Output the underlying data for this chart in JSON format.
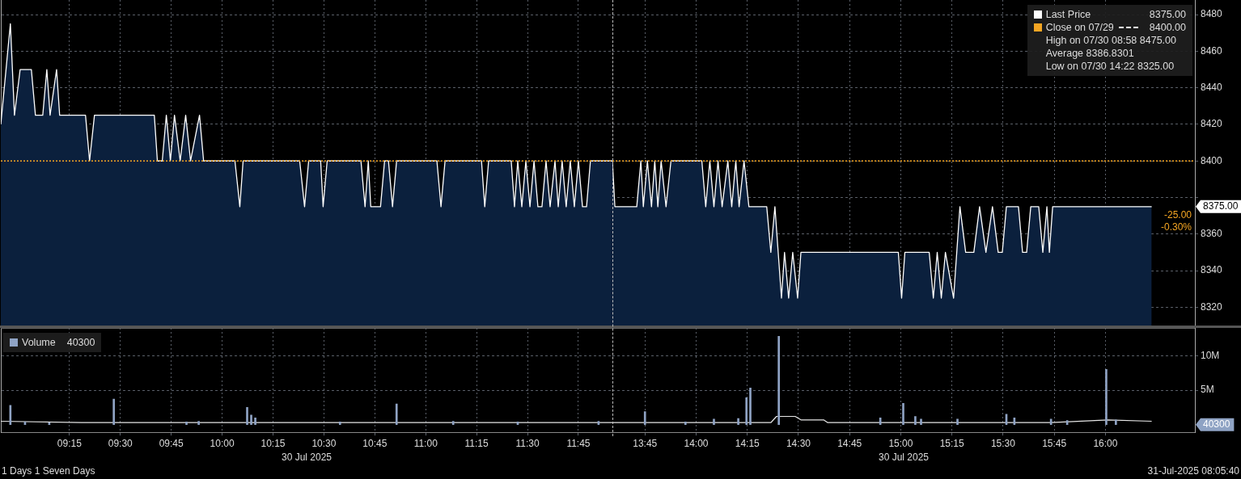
{
  "chart_data": [
    {
      "type": "area",
      "tick_labels": false,
      "grid": true,
      "xlim": [
        8.913,
        11.917
      ],
      "ylim": [
        8310,
        8488
      ],
      "xticks": [
        {
          "value": 9.25,
          "label": null
        },
        {
          "value": 9.5,
          "label": null
        },
        {
          "value": 9.75,
          "label": null
        },
        {
          "value": 10,
          "label": null
        },
        {
          "value": 10.25,
          "label": null
        },
        {
          "value": 10.5,
          "label": null
        },
        {
          "value": 10.75,
          "label": null
        },
        {
          "value": 11,
          "label": null
        },
        {
          "value": 11.25,
          "label": null
        },
        {
          "value": 11.5,
          "label": null
        },
        {
          "value": 11.75,
          "label": null
        }
      ],
      "yticks": [
        8320,
        8340,
        8360,
        8400,
        8420,
        8440,
        8460,
        8480
      ],
      "series": [
        {
          "color": "#ffffff",
          "x": [
            8.913,
            8.96,
            8.98,
            9.008,
            9.063,
            9.083,
            9.119,
            9.139,
            9.155,
            9.187,
            9.202,
            9.329,
            9.349,
            9.373,
            9.667,
            9.682,
            9.706,
            9.726,
            9.746,
            9.766,
            9.794,
            9.821,
            9.845,
            9.889,
            9.909,
            10.063,
            10.087,
            10.103,
            10.381,
            10.405,
            10.425,
            10.484,
            10.496,
            10.516,
            10.682,
            10.702,
            10.718,
            10.73,
            10.778,
            10.798,
            10.817,
            10.837,
            10.857,
            11.055,
            11.075,
            11.095,
            11.274,
            11.29,
            11.309,
            11.42,
            11.436,
            11.452,
            11.472,
            11.492,
            11.512,
            11.532,
            11.551,
            11.571,
            11.591,
            11.611,
            11.635,
            11.651,
            11.67,
            11.69,
            11.71,
            11.73,
            11.75,
            11.77,
            11.79,
            11.809,
            11.917
          ],
          "values": [
            8420,
            8475,
            8425,
            8450,
            8450,
            8425,
            8425,
            8450,
            8425,
            8450,
            8425,
            8425,
            8400,
            8425,
            8425,
            8400,
            8400,
            8425,
            8400,
            8425,
            8400,
            8425,
            8400,
            8425,
            8400,
            8400,
            8375,
            8400,
            8400,
            8375,
            8400,
            8400,
            8375,
            8400,
            8400,
            8375,
            8400,
            8375,
            8375,
            8400,
            8400,
            8375,
            8400,
            8400,
            8375,
            8400,
            8400,
            8375,
            8400,
            8400,
            8375,
            8400,
            8375,
            8400,
            8375,
            8400,
            8375,
            8375,
            8400,
            8375,
            8400,
            8375,
            8400,
            8375,
            8400,
            8375,
            8400,
            8375,
            8375,
            8400,
            8400
          ]
        }
      ],
      "ref_lines": [
        {
          "axis": "y",
          "value": 8400,
          "color": "#f5a623",
          "line_style": "dotted"
        }
      ]
    },
    {
      "type": "area",
      "tick_labels": "y",
      "grid": true,
      "legend": "top right",
      "xlim": [
        13.591,
        16.437
      ],
      "ylim": [
        8310,
        8488
      ],
      "xticks": [
        {
          "value": 13.75,
          "label": null
        },
        {
          "value": 14,
          "label": null
        },
        {
          "value": 14.25,
          "label": null
        },
        {
          "value": 14.5,
          "label": null
        },
        {
          "value": 14.75,
          "label": null
        },
        {
          "value": 15,
          "label": null
        },
        {
          "value": 15.25,
          "label": null
        },
        {
          "value": 15.5,
          "label": null
        },
        {
          "value": 15.75,
          "label": null
        },
        {
          "value": 16,
          "label": null
        }
      ],
      "yticks": [
        8320,
        8340,
        8360,
        {
          "value": 8380,
          "label": null
        },
        8400,
        8420,
        8440,
        8460,
        8480
      ],
      "series": [
        {
          "name": "Last Price",
          "color": "#ffffff",
          "x": [
            13.591,
            13.603,
            13.71,
            13.73,
            13.742,
            13.762,
            13.782,
            13.798,
            13.813,
            13.829,
            13.853,
            13.877,
            14.028,
            14.047,
            14.067,
            14.087,
            14.107,
            14.127,
            14.155,
            14.174,
            14.194,
            14.21,
            14.234,
            14.258,
            14.345,
            14.365,
            14.385,
            14.417,
            14.432,
            14.452,
            14.472,
            14.496,
            14.512,
            14.988,
            15.004,
            15.02,
            15.139,
            15.159,
            15.178,
            15.198,
            15.218,
            15.258,
            15.289,
            15.317,
            15.357,
            15.385,
            15.416,
            15.448,
            15.476,
            15.496,
            15.516,
            15.575,
            15.595,
            15.615,
            15.635,
            15.674,
            15.694,
            15.714,
            15.726,
            15.742,
            16.226
          ],
          "values": [
            8400,
            8375,
            8375,
            8400,
            8375,
            8400,
            8375,
            8400,
            8375,
            8400,
            8375,
            8400,
            8400,
            8375,
            8400,
            8375,
            8400,
            8375,
            8400,
            8375,
            8400,
            8375,
            8400,
            8375,
            8375,
            8350,
            8375,
            8325,
            8350,
            8325,
            8350,
            8325,
            8350,
            8350,
            8325,
            8350,
            8350,
            8325,
            8350,
            8325,
            8350,
            8325,
            8375,
            8350,
            8350,
            8375,
            8350,
            8375,
            8350,
            8350,
            8375,
            8375,
            8350,
            8350,
            8375,
            8375,
            8350,
            8375,
            8350,
            8375,
            8375
          ]
        }
      ],
      "ref_lines": [
        {
          "axis": "y",
          "value": 8400,
          "label": "Close on 07/29",
          "color": "#f5a623",
          "line_style": "dotted"
        }
      ],
      "annotations": [
        "8375.00",
        "8400.00",
        "High on 07/30 08:58 8475.00",
        "Average 8386.8301",
        "Low on 07/30 14:22 8325.00",
        "8375.00",
        "-25.00",
        "-0.30%"
      ]
    },
    {
      "type": "bar",
      "tick_labels": "x",
      "grid": true,
      "legend": "top left",
      "xlabel": "30 Jul 2025",
      "xlim": [
        8.913,
        11.917
      ],
      "ylim": [
        -1100000,
        14000000
      ],
      "xticks": [
        {
          "value": 9.25,
          "label": "09:15"
        },
        {
          "value": 9.5,
          "label": "09:30"
        },
        {
          "value": 9.75,
          "label": "09:45"
        },
        {
          "value": 10,
          "label": "10:00"
        },
        {
          "value": 10.25,
          "label": "10:15"
        },
        {
          "value": 10.5,
          "label": "10:30"
        },
        {
          "value": 10.75,
          "label": "10:45"
        },
        {
          "value": 11,
          "label": "11:00"
        },
        {
          "value": 11.25,
          "label": "11:15"
        },
        {
          "value": 11.5,
          "label": "11:30"
        },
        {
          "value": 11.75,
          "label": "11:45"
        }
      ],
      "yticks": [
        {
          "value": 5000000,
          "label": null
        },
        {
          "value": 10000000,
          "label": null
        }
      ],
      "series": [
        {
          "name": "Volume",
          "color": "#8fa3c4",
          "x": [
            8.96,
            9.032,
            9.151,
            9.468,
            9.825,
            9.885,
            10.123,
            10.143,
            10.163,
            10.579,
            10.857,
            11.135,
            11.452,
            11.849
          ],
          "values": [
            2800000,
            400000,
            300000,
            3700000,
            400000,
            500000,
            2500000,
            1400000,
            1000000,
            400000,
            3000000,
            500000,
            400000,
            500000
          ]
        },
        {
          "type": "line",
          "color": "#e6e6e6",
          "x": [
            8.913,
            9.309,
            11.917
          ],
          "values": [
            500000,
            300000,
            300000
          ]
        }
      ],
      "annotations": [
        "40300",
        "1 Days 1 Seven Days"
      ]
    },
    {
      "type": "bar",
      "grid": true,
      "xlabel": "30 Jul 2025",
      "xlim": [
        13.591,
        16.437
      ],
      "ylim": [
        -1100000,
        14000000
      ],
      "xticks": [
        {
          "value": 13.75,
          "label": "13:45"
        },
        {
          "value": 14,
          "label": "14:00"
        },
        {
          "value": 14.25,
          "label": "14:15"
        },
        {
          "value": 14.5,
          "label": "14:30"
        },
        {
          "value": 14.75,
          "label": "14:45"
        },
        {
          "value": 15,
          "label": "15:00"
        },
        {
          "value": 15.25,
          "label": "15:15"
        },
        {
          "value": 15.5,
          "label": "15:30"
        },
        {
          "value": 15.75,
          "label": "15:45"
        },
        {
          "value": 16,
          "label": "16:00"
        }
      ],
      "yticks": [
        {
          "value": 5000000,
          "label": "5M"
        },
        {
          "value": 10000000,
          "label": "10M"
        }
      ],
      "series": [
        {
          "color": "#8fa3c4",
          "x": [
            13.75,
            13.948,
            14.087,
            14.206,
            14.246,
            14.265,
            14.404,
            14.9,
            15.012,
            15.071,
            15.099,
            15.277,
            15.516,
            15.555,
            15.734,
            15.813,
            16.004,
            16.051
          ],
          "values": [
            1900000,
            400000,
            800000,
            900000,
            3900000,
            5300000,
            12800000,
            1000000,
            3100000,
            1200000,
            800000,
            800000,
            1500000,
            1000000,
            800000,
            600000,
            8000000,
            700000
          ]
        },
        {
          "type": "line",
          "color": "#e6e6e6",
          "x": [
            13.591,
            14.365,
            14.393,
            14.484,
            14.512,
            14.623,
            14.643,
            15.734,
            16.012,
            16.226
          ],
          "values": [
            300000,
            300000,
            1200000,
            1200000,
            700000,
            700000,
            300000,
            300000,
            700000,
            500000
          ]
        }
      ],
      "annotations": [
        "40300",
        "31-Jul-2025 08:05:40"
      ]
    }
  ]
}
